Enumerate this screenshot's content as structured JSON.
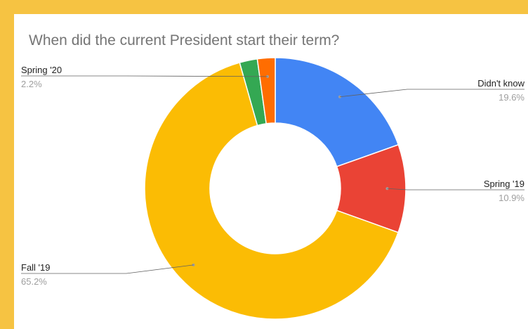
{
  "chart_data": {
    "type": "pie",
    "donut": true,
    "title": "When did the current President start their term?",
    "slices": [
      {
        "label": "Didn't know",
        "value": 19.6,
        "display": "19.6%",
        "color": "#4285f4"
      },
      {
        "label": "Spring '19",
        "value": 10.9,
        "display": "10.9%",
        "color": "#ea4335"
      },
      {
        "label": "Fall '19",
        "value": 65.2,
        "display": "65.2%",
        "color": "#fbbc04"
      },
      {
        "label": "",
        "value": 2.2,
        "display": "",
        "color": "#34a853"
      },
      {
        "label": "Spring '20",
        "value": 2.2,
        "display": "2.2%",
        "color": "#ff6d01"
      }
    ],
    "legend": "none (callout labels)"
  }
}
